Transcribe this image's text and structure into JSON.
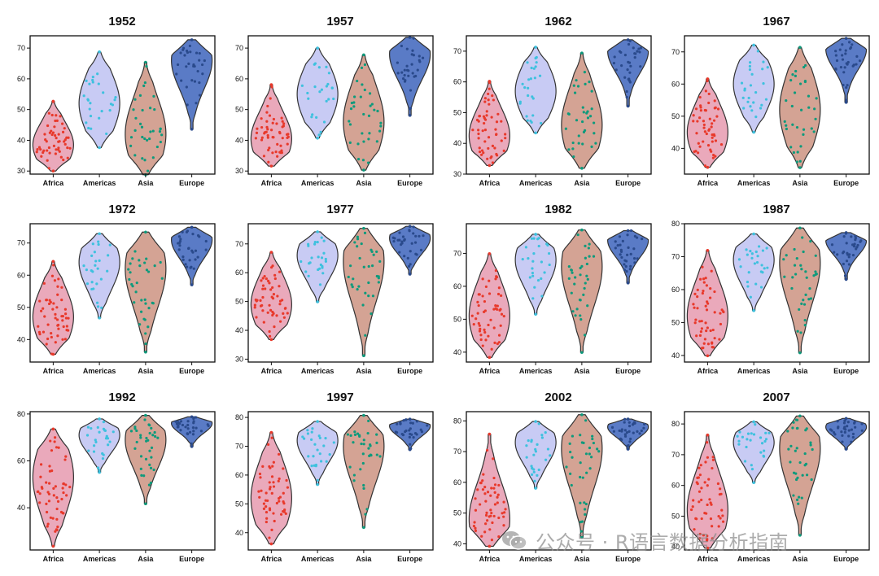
{
  "figure": {
    "continents": [
      "Africa",
      "Americas",
      "Asia",
      "Europe"
    ],
    "colors": {
      "Africa": {
        "fill": "#eaa9bb",
        "dot": "#e8392b"
      },
      "Americas": {
        "fill": "#c8cbf4",
        "dot": "#3ec1de"
      },
      "Asia": {
        "fill": "#d4a394",
        "dot": "#0e9a7c"
      },
      "Europe": {
        "fill": "#5a7bc6",
        "dot": "#2a4a8c"
      }
    },
    "outline_color": "#333333",
    "watermark": "公众号 · R语言数据分析指南"
  },
  "chart_data": [
    {
      "type": "violin",
      "title": "1952",
      "ylim": [
        29,
        74
      ],
      "yticks": [
        30,
        40,
        50,
        60,
        70
      ],
      "categories": [
        "Africa",
        "Americas",
        "Asia",
        "Europe"
      ],
      "series": [
        {
          "name": "Africa",
          "min": 30,
          "max": 52.7,
          "mode": 38.5,
          "n": 52
        },
        {
          "name": "Americas",
          "min": 37.6,
          "max": 68.8,
          "mode": 52,
          "n": 25
        },
        {
          "name": "Asia",
          "min": 28.8,
          "max": 65.4,
          "mode": 42,
          "n": 33
        },
        {
          "name": "Europe",
          "min": 43.6,
          "max": 72.7,
          "mode": 66,
          "n": 30
        }
      ]
    },
    {
      "type": "violin",
      "title": "1957",
      "ylim": [
        29,
        74
      ],
      "yticks": [
        30,
        40,
        50,
        60,
        70
      ],
      "categories": [
        "Africa",
        "Americas",
        "Asia",
        "Europe"
      ],
      "series": [
        {
          "name": "Africa",
          "min": 31.6,
          "max": 58.1,
          "mode": 40.5,
          "n": 52
        },
        {
          "name": "Americas",
          "min": 40.7,
          "max": 70.0,
          "mode": 55,
          "n": 25
        },
        {
          "name": "Asia",
          "min": 30.3,
          "max": 67.8,
          "mode": 46,
          "n": 33
        },
        {
          "name": "Europe",
          "min": 48.1,
          "max": 73.5,
          "mode": 68,
          "n": 30
        }
      ]
    },
    {
      "type": "violin",
      "title": "1962",
      "ylim": [
        30,
        75
      ],
      "yticks": [
        30,
        40,
        50,
        60,
        70
      ],
      "categories": [
        "Africa",
        "Americas",
        "Asia",
        "Europe"
      ],
      "series": [
        {
          "name": "Africa",
          "min": 32.8,
          "max": 60.2,
          "mode": 42.5,
          "n": 52
        },
        {
          "name": "Americas",
          "min": 43.4,
          "max": 71.3,
          "mode": 57,
          "n": 25
        },
        {
          "name": "Asia",
          "min": 31.9,
          "max": 69.4,
          "mode": 46,
          "n": 33
        },
        {
          "name": "Europe",
          "min": 52.1,
          "max": 73.7,
          "mode": 70,
          "n": 30
        }
      ]
    },
    {
      "type": "violin",
      "title": "1967",
      "ylim": [
        32,
        75
      ],
      "yticks": [
        40,
        50,
        60,
        70
      ],
      "categories": [
        "Africa",
        "Americas",
        "Asia",
        "Europe"
      ],
      "series": [
        {
          "name": "Africa",
          "min": 34.1,
          "max": 61.6,
          "mode": 45,
          "n": 52
        },
        {
          "name": "Americas",
          "min": 45.0,
          "max": 72.1,
          "mode": 60,
          "n": 25
        },
        {
          "name": "Asia",
          "min": 34.0,
          "max": 71.4,
          "mode": 52,
          "n": 33
        },
        {
          "name": "Europe",
          "min": 54.3,
          "max": 74.2,
          "mode": 71,
          "n": 30
        }
      ]
    },
    {
      "type": "violin",
      "title": "1972",
      "ylim": [
        33,
        76
      ],
      "yticks": [
        40,
        50,
        60,
        70
      ],
      "categories": [
        "Africa",
        "Americas",
        "Asia",
        "Europe"
      ],
      "series": [
        {
          "name": "Africa",
          "min": 35.4,
          "max": 64.3,
          "mode": 47,
          "n": 52
        },
        {
          "name": "Americas",
          "min": 46.7,
          "max": 72.9,
          "mode": 64,
          "n": 25
        },
        {
          "name": "Asia",
          "min": 36.1,
          "max": 73.4,
          "mode": 62,
          "n": 33
        },
        {
          "name": "Europe",
          "min": 57.0,
          "max": 74.9,
          "mode": 71,
          "n": 30
        }
      ]
    },
    {
      "type": "violin",
      "title": "1977",
      "ylim": [
        29,
        77
      ],
      "yticks": [
        30,
        40,
        50,
        60,
        70
      ],
      "categories": [
        "Africa",
        "Americas",
        "Asia",
        "Europe"
      ],
      "series": [
        {
          "name": "Africa",
          "min": 36.8,
          "max": 67.1,
          "mode": 49,
          "n": 52
        },
        {
          "name": "Americas",
          "min": 49.9,
          "max": 74.2,
          "mode": 66,
          "n": 25
        },
        {
          "name": "Asia",
          "min": 31.2,
          "max": 75.4,
          "mode": 64,
          "n": 33
        },
        {
          "name": "Europe",
          "min": 59.5,
          "max": 76.1,
          "mode": 72,
          "n": 30
        }
      ]
    },
    {
      "type": "violin",
      "title": "1982",
      "ylim": [
        37,
        79
      ],
      "yticks": [
        40,
        50,
        60,
        70
      ],
      "categories": [
        "Africa",
        "Americas",
        "Asia",
        "Europe"
      ],
      "series": [
        {
          "name": "Africa",
          "min": 38.4,
          "max": 69.9,
          "mode": 51,
          "n": 52
        },
        {
          "name": "Americas",
          "min": 51.5,
          "max": 75.8,
          "mode": 68,
          "n": 25
        },
        {
          "name": "Asia",
          "min": 39.9,
          "max": 77.1,
          "mode": 66,
          "n": 33
        },
        {
          "name": "Europe",
          "min": 61.0,
          "max": 76.9,
          "mode": 74,
          "n": 30
        }
      ]
    },
    {
      "type": "violin",
      "title": "1987",
      "ylim": [
        38,
        80
      ],
      "yticks": [
        40,
        50,
        60,
        70,
        80
      ],
      "categories": [
        "Africa",
        "Americas",
        "Asia",
        "Europe"
      ],
      "series": [
        {
          "name": "Africa",
          "min": 39.9,
          "max": 71.9,
          "mode": 52,
          "n": 52
        },
        {
          "name": "Americas",
          "min": 53.6,
          "max": 76.9,
          "mode": 69,
          "n": 25
        },
        {
          "name": "Asia",
          "min": 40.8,
          "max": 78.7,
          "mode": 68,
          "n": 33
        },
        {
          "name": "Europe",
          "min": 63.1,
          "max": 77.3,
          "mode": 75,
          "n": 30
        }
      ]
    },
    {
      "type": "violin",
      "title": "1992",
      "ylim": [
        22,
        81
      ],
      "yticks": [
        40,
        60,
        80
      ],
      "categories": [
        "Africa",
        "Americas",
        "Asia",
        "Europe"
      ],
      "series": [
        {
          "name": "Africa",
          "min": 23.6,
          "max": 73.6,
          "mode": 53,
          "n": 52
        },
        {
          "name": "Americas",
          "min": 55.1,
          "max": 77.9,
          "mode": 71,
          "n": 25
        },
        {
          "name": "Asia",
          "min": 41.7,
          "max": 79.4,
          "mode": 69,
          "n": 33
        },
        {
          "name": "Europe",
          "min": 66.1,
          "max": 78.8,
          "mode": 76,
          "n": 30
        }
      ]
    },
    {
      "type": "violin",
      "title": "1997",
      "ylim": [
        34,
        82
      ],
      "yticks": [
        40,
        50,
        60,
        70,
        80
      ],
      "categories": [
        "Africa",
        "Americas",
        "Asia",
        "Europe"
      ],
      "series": [
        {
          "name": "Africa",
          "min": 36.1,
          "max": 74.8,
          "mode": 52,
          "n": 52
        },
        {
          "name": "Americas",
          "min": 56.7,
          "max": 78.6,
          "mode": 72,
          "n": 25
        },
        {
          "name": "Asia",
          "min": 41.8,
          "max": 80.7,
          "mode": 70,
          "n": 33
        },
        {
          "name": "Europe",
          "min": 68.8,
          "max": 79.4,
          "mode": 77,
          "n": 30
        }
      ]
    },
    {
      "type": "violin",
      "title": "2002",
      "ylim": [
        38,
        83
      ],
      "yticks": [
        40,
        50,
        60,
        70,
        80
      ],
      "categories": [
        "Africa",
        "Americas",
        "Asia",
        "Europe"
      ],
      "series": [
        {
          "name": "Africa",
          "min": 39.2,
          "max": 75.7,
          "mode": 48,
          "n": 52
        },
        {
          "name": "Americas",
          "min": 58.1,
          "max": 79.8,
          "mode": 73,
          "n": 25
        },
        {
          "name": "Asia",
          "min": 42.1,
          "max": 82.0,
          "mode": 71,
          "n": 33
        },
        {
          "name": "Europe",
          "min": 70.8,
          "max": 80.6,
          "mode": 78,
          "n": 30
        }
      ]
    },
    {
      "type": "violin",
      "title": "2007",
      "ylim": [
        39,
        84
      ],
      "yticks": [
        40,
        50,
        60,
        70,
        80
      ],
      "categories": [
        "Africa",
        "Americas",
        "Asia",
        "Europe"
      ],
      "series": [
        {
          "name": "Africa",
          "min": 39.6,
          "max": 76.4,
          "mode": 52,
          "n": 52
        },
        {
          "name": "Americas",
          "min": 60.9,
          "max": 80.7,
          "mode": 74,
          "n": 25
        },
        {
          "name": "Asia",
          "min": 43.8,
          "max": 82.6,
          "mode": 72,
          "n": 33
        },
        {
          "name": "Europe",
          "min": 71.8,
          "max": 81.8,
          "mode": 79,
          "n": 30
        }
      ]
    }
  ]
}
